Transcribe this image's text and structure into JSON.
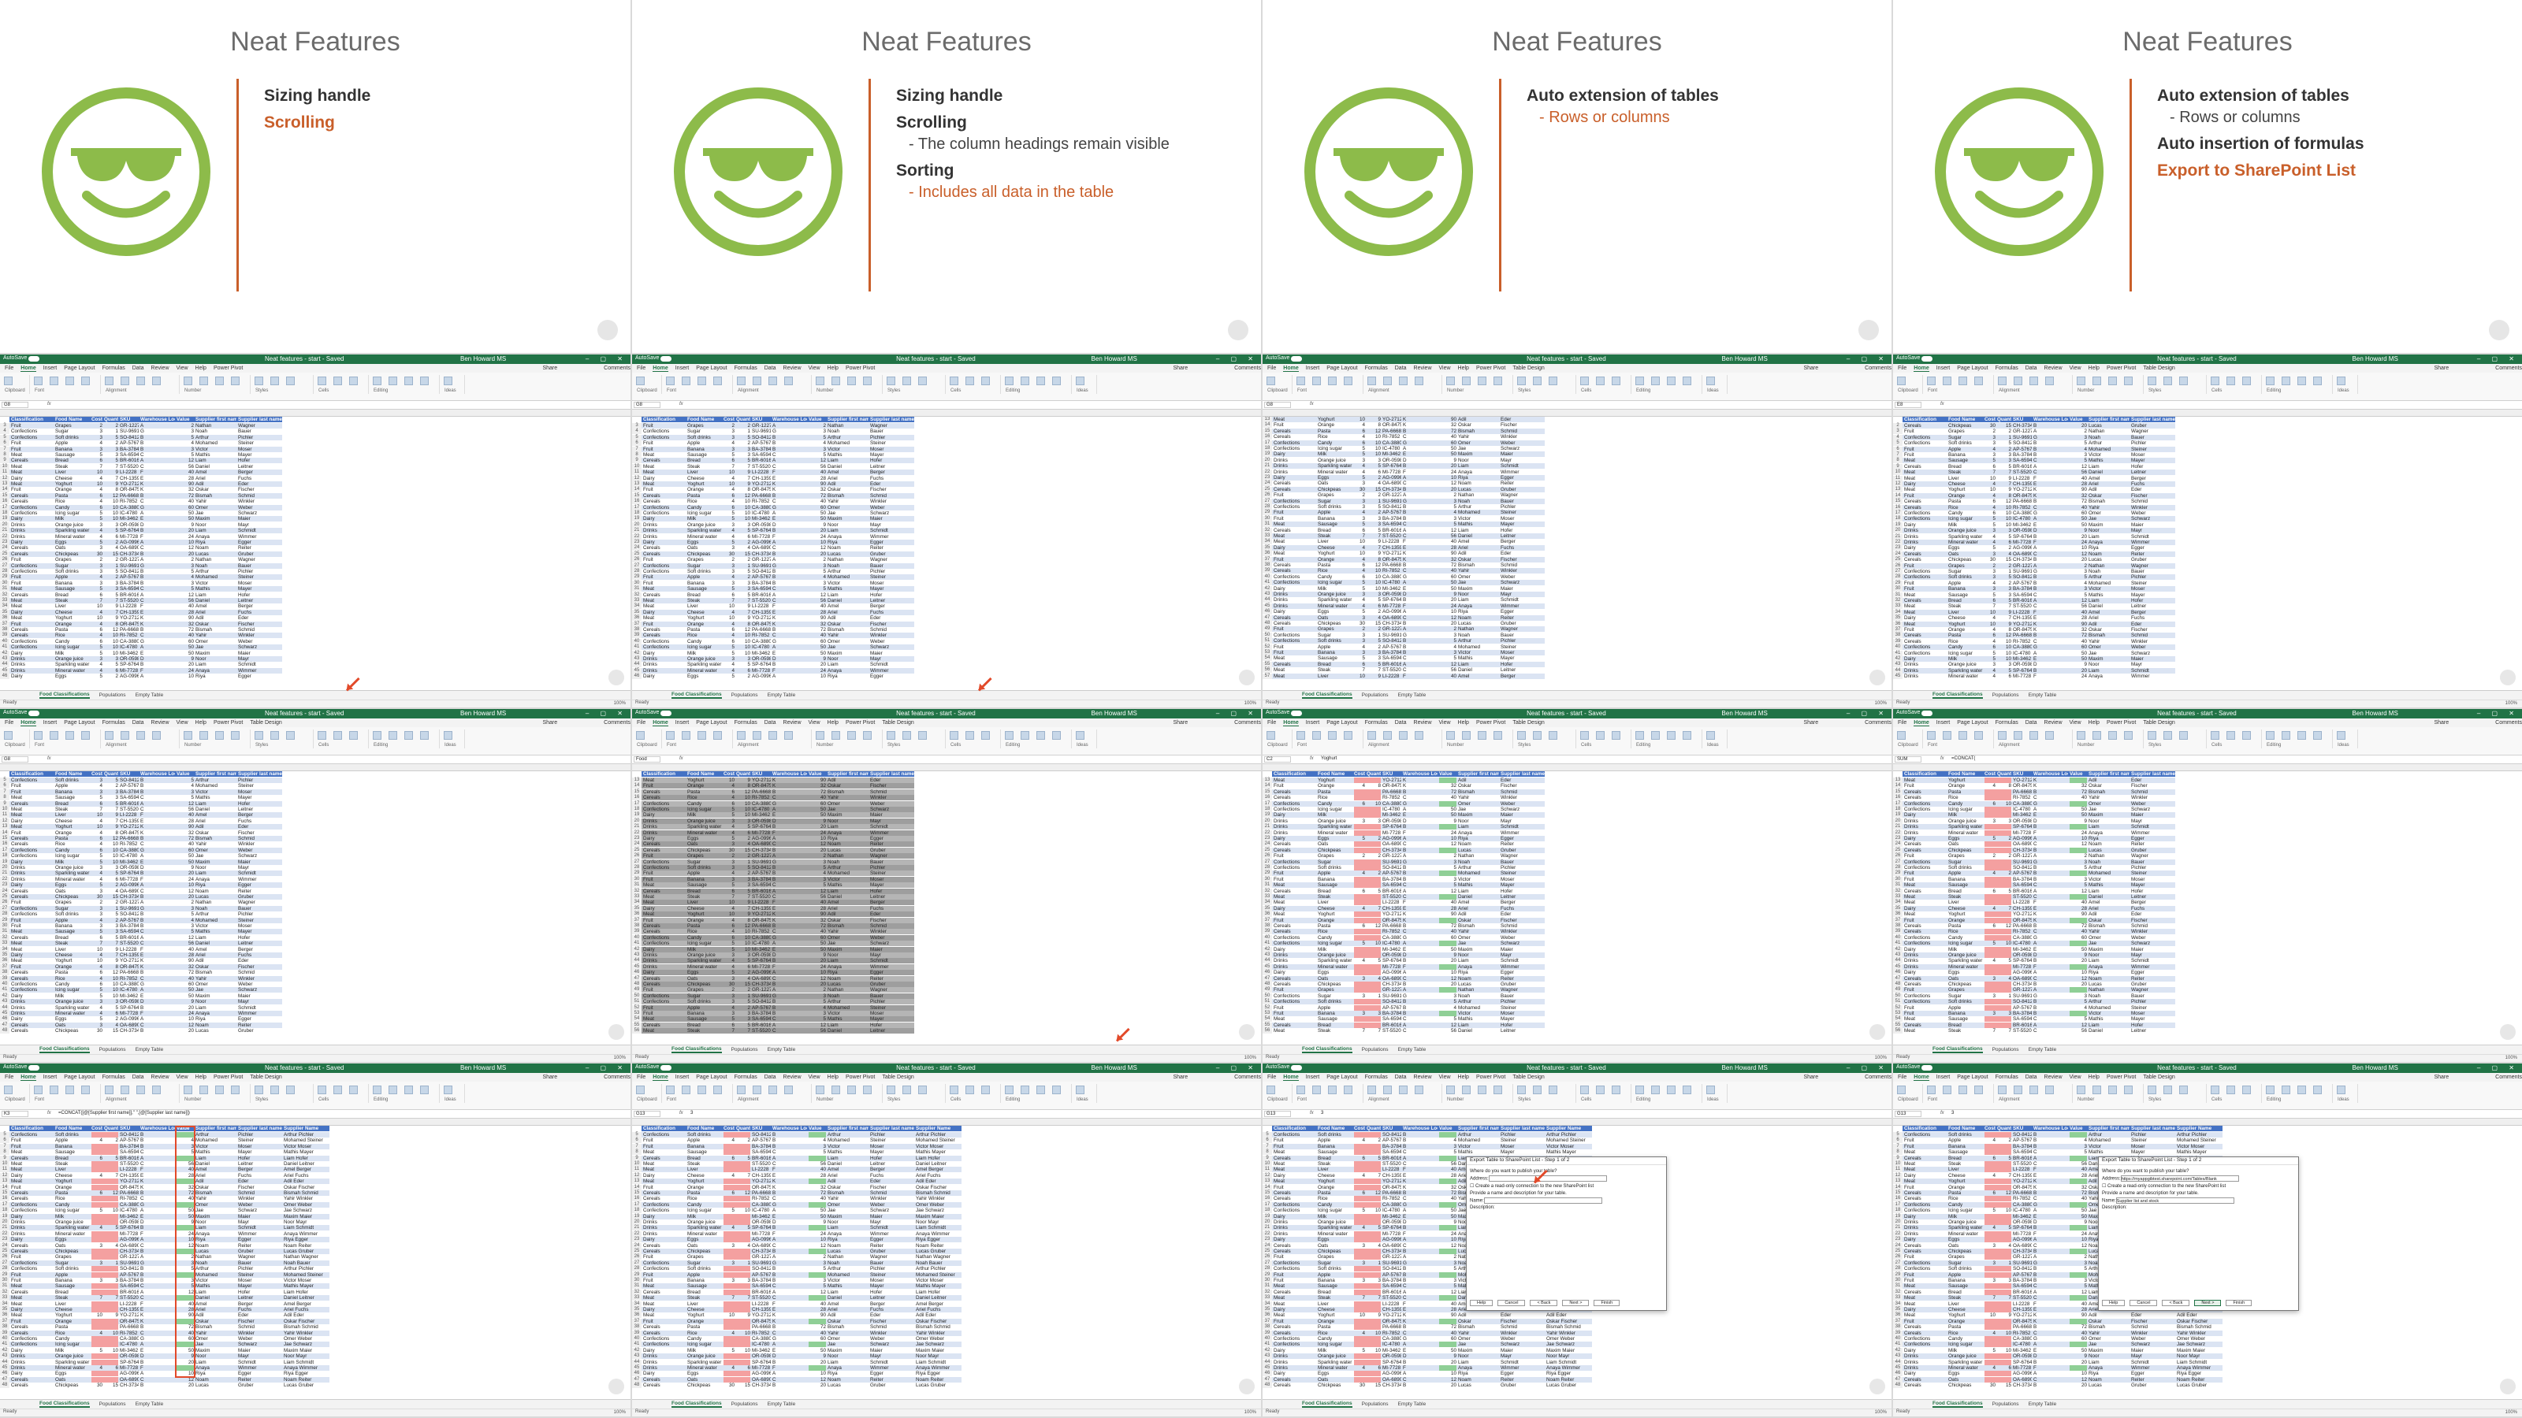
{
  "slides": [
    {
      "title": "Neat Features",
      "bullets": [
        {
          "text": "Sizing handle",
          "level": 1,
          "accent": false
        },
        {
          "text": "Scrolling",
          "level": 1,
          "accent": true
        }
      ]
    },
    {
      "title": "Neat Features",
      "bullets": [
        {
          "text": "Sizing handle",
          "level": 1,
          "accent": false
        },
        {
          "text": "Scrolling",
          "level": 1,
          "accent": false
        },
        {
          "text": "The column headings remain visible",
          "level": 2,
          "accent": false
        },
        {
          "text": "Sorting",
          "level": 1,
          "accent": false
        },
        {
          "text": "Includes all data in the table",
          "level": 2,
          "accent": true
        }
      ]
    },
    {
      "title": "Neat Features",
      "bullets": [
        {
          "text": "Auto extension of tables",
          "level": 1,
          "accent": false
        },
        {
          "text": "Rows or columns",
          "level": 2,
          "accent": true
        }
      ]
    },
    {
      "title": "Neat Features",
      "bullets": [
        {
          "text": "Auto extension of tables",
          "level": 1,
          "accent": false
        },
        {
          "text": "Rows or columns",
          "level": 2,
          "accent": false
        },
        {
          "text": "Auto insertion of formulas",
          "level": 1,
          "accent": false
        },
        {
          "text": "Export to SharePoint List",
          "level": 1,
          "accent": true
        }
      ]
    }
  ],
  "excel": {
    "autosave": "AutoSave",
    "doc_title": "Neat features - start - Saved",
    "user": "Ben Howard MS",
    "share": "Share",
    "comments": "Comments",
    "tabs": [
      "File",
      "Home",
      "Insert",
      "Page Layout",
      "Formulas",
      "Data",
      "Review",
      "View",
      "Help",
      "Power Pivot",
      "Table Design"
    ],
    "ribbon_groups": [
      "Clipboard",
      "Font",
      "Alignment",
      "Number",
      "Styles",
      "Cells",
      "Editing",
      "Ideas"
    ],
    "sheet_tabs": [
      "Food Classifications",
      "Populations",
      "Empty Table"
    ],
    "status_ready": "Ready",
    "zoom": "100%",
    "headers": [
      "Classification",
      "Food Name",
      "Cost",
      "Quantity",
      "SKU",
      "Warehouse Location",
      "Value",
      "Supplier first name",
      "Supplier last name"
    ],
    "extra_header": "Supplier Name",
    "rows": [
      [
        "Cereals",
        "Chickpeas",
        "30",
        "15",
        "CH-3734",
        "B",
        "20",
        "Lucas",
        "Gruber"
      ],
      [
        "Fruit",
        "Grapes",
        "2",
        "2",
        "GR-1227",
        "A",
        "2",
        "Nathan",
        "Wagner"
      ],
      [
        "Confections",
        "Sugar",
        "3",
        "1",
        "SU-9691",
        "G",
        "3",
        "Noah",
        "Bauer"
      ],
      [
        "Confections",
        "Soft drinks",
        "3",
        "5",
        "SO-8412",
        "B",
        "5",
        "Arthur",
        "Pichler"
      ],
      [
        "Fruit",
        "Apple",
        "4",
        "2",
        "AP-5767",
        "B",
        "4",
        "Mohamed",
        "Steiner"
      ],
      [
        "Fruit",
        "Banana",
        "3",
        "3",
        "BA-3784",
        "B",
        "3",
        "Victor",
        "Moser"
      ],
      [
        "Meat",
        "Sausage",
        "5",
        "3",
        "SA-6594",
        "C",
        "5",
        "Mathis",
        "Mayer"
      ],
      [
        "Cereals",
        "Bread",
        "6",
        "5",
        "BR-6016",
        "A",
        "12",
        "Liam",
        "Hofer"
      ],
      [
        "Meat",
        "Steak",
        "7",
        "7",
        "ST-5520",
        "C",
        "56",
        "Daniel",
        "Leitner"
      ],
      [
        "Meat",
        "Liver",
        "10",
        "9",
        "LI-2228",
        "F",
        "40",
        "Amel",
        "Berger"
      ],
      [
        "Dairy",
        "Cheese",
        "4",
        "7",
        "CH-1359",
        "E",
        "28",
        "Ariel",
        "Fuchs"
      ],
      [
        "Meat",
        "Yoghurt",
        "10",
        "9",
        "YO-2712",
        "K",
        "90",
        "Adil",
        "Eder"
      ],
      [
        "Fruit",
        "Orange",
        "4",
        "8",
        "OR-8475",
        "K",
        "32",
        "Oskar",
        "Fischer"
      ],
      [
        "Cereals",
        "Pasta",
        "6",
        "12",
        "PA-6668",
        "B",
        "72",
        "Bismah",
        "Schmid"
      ],
      [
        "Cereals",
        "Rice",
        "4",
        "10",
        "RI-7852",
        "C",
        "40",
        "Yahir",
        "Winkler"
      ],
      [
        "Confections",
        "Candy",
        "6",
        "10",
        "CA-3880",
        "G",
        "60",
        "Omer",
        "Weber"
      ],
      [
        "Confections",
        "Icing sugar",
        "5",
        "10",
        "IC-4780",
        "A",
        "50",
        "Jae",
        "Schwarz"
      ],
      [
        "Dairy",
        "Milk",
        "5",
        "10",
        "MI-3462",
        "E",
        "50",
        "Maxim",
        "Maier"
      ],
      [
        "Drinks",
        "Orange juice",
        "3",
        "3",
        "OR-0598",
        "D",
        "9",
        "Noor",
        "Mayr"
      ],
      [
        "Drinks",
        "Sparkling water",
        "4",
        "5",
        "SP-6764",
        "B",
        "20",
        "Liam",
        "Schmidt"
      ],
      [
        "Drinks",
        "Mineral water",
        "4",
        "6",
        "MI-7728",
        "F",
        "24",
        "Anaya",
        "Wimmer"
      ],
      [
        "Dairy",
        "Eggs",
        "5",
        "2",
        "AG-0996",
        "A",
        "10",
        "Riya",
        "Egger"
      ],
      [
        "Cereals",
        "Oats",
        "3",
        "4",
        "OA-6890",
        "C",
        "12",
        "Noam",
        "Reiter"
      ]
    ],
    "panels": [
      {
        "namebox": "G8",
        "formula": "",
        "row_start": 1,
        "show_hdr": true,
        "mode": "plain",
        "tab": false
      },
      {
        "namebox": "G8",
        "formula": "",
        "row_start": 1,
        "show_hdr": true,
        "mode": "plain",
        "tab": false
      },
      {
        "namebox": "G8",
        "formula": "",
        "row_start": 11,
        "show_hdr": false,
        "mode": "plain",
        "tab": true
      },
      {
        "namebox": "E8",
        "formula": "",
        "row_start": 0,
        "show_hdr": true,
        "mode": "plain",
        "tab": true
      },
      {
        "namebox": "G8",
        "formula": "",
        "row_start": 3,
        "show_hdr": true,
        "mode": "plain",
        "tab": true
      },
      {
        "namebox": "Food",
        "formula": "",
        "row_start": 11,
        "show_hdr": true,
        "mode": "gray",
        "tab": true
      },
      {
        "namebox": "C2",
        "formula": "Yoghurt",
        "row_start": 11,
        "show_hdr": true,
        "mode": "color",
        "tab": true
      },
      {
        "namebox": "SUM",
        "formula": "=CONCAT(",
        "row_start": 11,
        "show_hdr": true,
        "mode": "color",
        "tab": true
      },
      {
        "namebox": "K3",
        "formula": "=CONCAT([@[Supplier first name]],\" \",[@[Supplier last name]])",
        "row_start": 3,
        "show_hdr": true,
        "mode": "color",
        "tab": true
      },
      {
        "namebox": "G13",
        "formula": "3",
        "row_start": 3,
        "show_hdr": true,
        "mode": "color",
        "tab": true
      },
      {
        "namebox": "G13",
        "formula": "3",
        "row_start": 3,
        "show_hdr": true,
        "mode": "color",
        "tab": true
      },
      {
        "namebox": "G13",
        "formula": "3",
        "row_start": 3,
        "show_hdr": true,
        "mode": "color",
        "tab": true
      }
    ],
    "dialog": {
      "title": "Export Table to SharePoint List - Step 1 of 2",
      "q": "Where do you want to publish your table?",
      "address_label": "Address:",
      "address_value": "https://myappgibtest.sharepoint.com/Tables/Blank",
      "address_value_empty": "",
      "checkbox": "Create a read-only connection to the new SharePoint list",
      "desc": "Provide a name and description for your table.",
      "name_label": "Name:",
      "name_value": "Supplier list and stock",
      "desc_label": "Description:",
      "buttons": [
        "Help",
        "Cancel",
        "< Back",
        "Next >",
        "Finish"
      ]
    }
  },
  "colors": {
    "excel_green": "#217346",
    "accent": "#c95f2a",
    "smiley": "#8dbb4a",
    "table_header": "#4472c4"
  }
}
